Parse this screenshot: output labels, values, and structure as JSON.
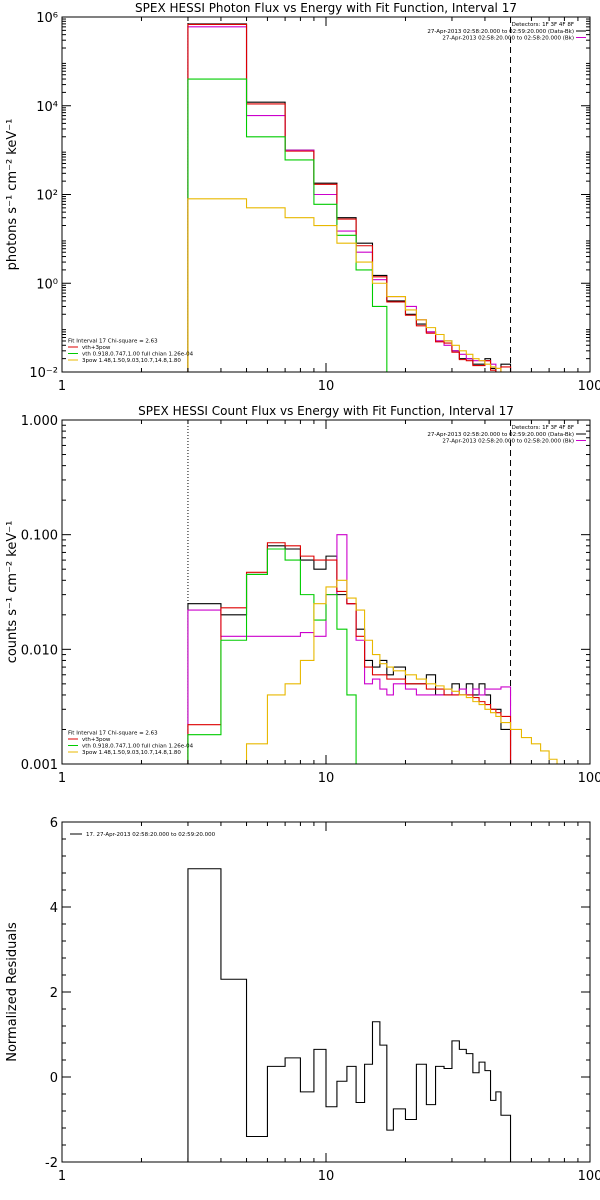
{
  "chart_data": [
    {
      "type": "line",
      "title": "SPEX HESSI Photon Flux vs Energy with Fit Function, Interval 17",
      "xlabel": "",
      "ylabel": "photons s⁻¹ cm⁻² keV⁻¹",
      "xscale": "log",
      "yscale": "log",
      "xlim": [
        1,
        100
      ],
      "ylim": [
        0.01,
        1000000
      ],
      "x_ticks": [
        "1",
        "10",
        "100"
      ],
      "y_ticks": [
        {
          "value": 0.01,
          "label": "10⁻²"
        },
        {
          "value": 1,
          "label": "10⁰"
        },
        {
          "value": 100,
          "label": "10²"
        },
        {
          "value": 10000,
          "label": "10⁴"
        },
        {
          "value": 1000000,
          "label": "10⁶"
        }
      ],
      "legend_top_right": {
        "header": "Detectors: 1F 3F 4F 8F",
        "entries": [
          {
            "text": "27-Apr-2013 02:58:20.000 to 02:59:20.000 (Data-Bk)",
            "color": "#000000"
          },
          {
            "text": "27-Apr-2013 02:58:20.000 to 02:58:20.000 (Bk)",
            "color": "#cc00cc"
          }
        ]
      },
      "legend_bottom_left": {
        "header": "Fit Interval 17   Chi-square = 2.63",
        "entries": [
          {
            "text": "vth+3pow",
            "color": "#dd0000"
          },
          {
            "text": "vth 0.918,0.747,1.00  full chian 1.26e-04",
            "color": "#00cc00"
          },
          {
            "text": "3pow 1.48,1.50,9.03,10.7,14.8,1.80",
            "color": "#e8b800"
          }
        ]
      },
      "vlines": [
        {
          "x": 3,
          "style": "dotted"
        },
        {
          "x": 50,
          "style": "dashed"
        }
      ],
      "edges": [
        3,
        4,
        5,
        6,
        7,
        8,
        9,
        10,
        11,
        12,
        13,
        14,
        15,
        16,
        17,
        18,
        20,
        22,
        24,
        26,
        28,
        30,
        32,
        34,
        36,
        38,
        40,
        42,
        44,
        46,
        50,
        55,
        60,
        65
      ],
      "series": [
        {
          "name": "27-Apr-2013 02:58:20.000 to 02:59:20.000 (Data-Bk)",
          "color": "#000000",
          "values": [
            700000,
            700000,
            12000,
            12000,
            1000,
            1000,
            180,
            180,
            30,
            30,
            8,
            8,
            1.5,
            1.5,
            0.4,
            0.4,
            0.2,
            0.12,
            0.08,
            0.05,
            0.05,
            0.03,
            0.02,
            0.02,
            0.015,
            0.015,
            0.02,
            0.012,
            0.01,
            0.015
          ]
        },
        {
          "name": "27-Apr-2013 02:58:20.000 to 02:58:20.000 (Bk)",
          "color": "#cc00cc",
          "values": [
            600000,
            600000,
            6000,
            6000,
            1000,
            1000,
            100,
            100,
            15,
            15,
            5,
            5,
            1.2,
            1.2,
            0.5,
            0.5,
            0.3,
            0.15,
            0.08,
            0.05,
            0.04,
            0.03,
            0.025,
            0.02,
            0.018,
            0.018,
            0.018,
            0.015,
            0.012,
            0.01
          ]
        },
        {
          "name": "vth+3pow",
          "color": "#dd0000",
          "values": [
            680000,
            680000,
            11000,
            11000,
            950,
            950,
            170,
            170,
            28,
            28,
            7,
            7,
            1.4,
            1.4,
            0.38,
            0.38,
            0.19,
            0.11,
            0.075,
            0.048,
            0.045,
            0.028,
            0.019,
            0.018,
            0.014,
            0.014,
            0.018,
            0.011,
            0.009,
            0.013
          ]
        },
        {
          "name": "vth 0.918,0.747,1.00  full chian 1.26e-04",
          "color": "#00cc00",
          "values": [
            40000,
            40000,
            2000,
            2000,
            600,
            600,
            60,
            60,
            12,
            12,
            2,
            2,
            0.3,
            0.3,
            0.01,
            0.01
          ]
        },
        {
          "name": "3pow 1.48,1.50,9.03,10.7,14.8,1.80",
          "color": "#e8b800",
          "values": [
            80,
            80,
            50,
            50,
            30,
            30,
            20,
            20,
            8,
            8,
            3,
            3,
            1,
            1,
            0.5,
            0.5,
            0.25,
            0.15,
            0.1,
            0.07,
            0.05,
            0.04,
            0.03,
            0.025,
            0.02,
            0.018,
            0.015,
            0.013,
            0.012,
            0.01,
            0.008,
            0.006,
            0.005
          ]
        }
      ]
    },
    {
      "type": "line",
      "title": "SPEX HESSI Count Flux vs Energy with Fit Function, Interval 17",
      "xlabel": "",
      "ylabel": "counts s⁻¹ cm⁻² keV⁻¹",
      "xscale": "log",
      "yscale": "log",
      "xlim": [
        1,
        100
      ],
      "ylim": [
        0.001,
        1.0
      ],
      "x_ticks": [
        "1",
        "10",
        "100"
      ],
      "y_ticks": [
        {
          "value": 0.001,
          "label": "0.001"
        },
        {
          "value": 0.01,
          "label": "0.010"
        },
        {
          "value": 0.1,
          "label": "0.100"
        },
        {
          "value": 1.0,
          "label": "1.000"
        }
      ],
      "legend_top_right": {
        "header": "Detectors: 1F 3F 4F 8F",
        "entries": [
          {
            "text": "27-Apr-2013 02:58:20.000 to 02:59:20.000 (Data-Bk)",
            "color": "#000000"
          },
          {
            "text": "27-Apr-2013 02:58:20.000 to 02:58:20.000 (Bk)",
            "color": "#cc00cc"
          }
        ]
      },
      "legend_bottom_left": {
        "header": "Fit Interval 17   Chi-square = 2.63",
        "entries": [
          {
            "text": "vth+3pow",
            "color": "#dd0000"
          },
          {
            "text": "vth 0.918,0.747,1.00  full chian 1.26e-04",
            "color": "#00cc00"
          },
          {
            "text": "3pow 1.48,1.50,9.03,10.7,14.8,1.80",
            "color": "#e8b800"
          }
        ]
      },
      "vlines": [
        {
          "x": 3,
          "style": "dotted"
        },
        {
          "x": 50,
          "style": "dashed"
        }
      ],
      "edges": [
        3,
        4,
        5,
        6,
        7,
        8,
        9,
        10,
        11,
        12,
        13,
        14,
        15,
        16,
        17,
        18,
        20,
        22,
        24,
        26,
        28,
        30,
        32,
        34,
        36,
        38,
        40,
        42,
        44,
        46,
        50,
        55,
        60,
        65,
        70,
        75,
        80,
        90
      ],
      "series": [
        {
          "name": "27-Apr-2013 02:58:20.000 to 02:59:20.000 (Data-Bk)",
          "color": "#000000",
          "values": [
            0.025,
            0.02,
            0.045,
            0.08,
            0.075,
            0.06,
            0.05,
            0.065,
            0.03,
            0.025,
            0.015,
            0.008,
            0.007,
            0.008,
            0.006,
            0.007,
            0.005,
            0.005,
            0.006,
            0.004,
            0.004,
            0.005,
            0.004,
            0.005,
            0.004,
            0.005,
            0.004,
            0.003,
            0.003,
            0.002
          ]
        },
        {
          "name": "27-Apr-2013 02:58:20.000 to 02:58:20.000 (Bk)",
          "color": "#cc00cc",
          "values": [
            0.022,
            0.013,
            0.013,
            0.013,
            0.013,
            0.014,
            0.013,
            0.03,
            0.1,
            0.025,
            0.012,
            0.005,
            0.0055,
            0.0045,
            0.004,
            0.005,
            0.0045,
            0.004,
            0.004,
            0.004,
            0.0045,
            0.004,
            0.0045,
            0.004,
            0.0045,
            0.004,
            0.0045,
            0.0045,
            0.0045,
            0.0047
          ]
        },
        {
          "name": "vth+3pow",
          "color": "#dd0000",
          "values": [
            0.0022,
            0.023,
            0.047,
            0.085,
            0.08,
            0.065,
            0.06,
            0.06,
            0.032,
            0.025,
            0.013,
            0.007,
            0.006,
            0.006,
            0.0055,
            0.0055,
            0.005,
            0.005,
            0.0045,
            0.0045,
            0.004,
            0.004,
            0.004,
            0.004,
            0.0038,
            0.0035,
            0.0033,
            0.003,
            0.0028,
            0.0026
          ]
        },
        {
          "name": "vth 0.918,0.747,1.00  full chian 1.26e-04",
          "color": "#00cc00",
          "values": [
            0.0018,
            0.012,
            0.045,
            0.075,
            0.06,
            0.03,
            0.018,
            0.03,
            0.015,
            0.004,
            0.001
          ]
        },
        {
          "name": "3pow 1.48,1.50,9.03,10.7,14.8,1.80",
          "color": "#e8b800",
          "values": [
            0.001,
            0.001,
            0.0015,
            0.004,
            0.005,
            0.008,
            0.025,
            0.035,
            0.04,
            0.028,
            0.022,
            0.012,
            0.009,
            0.0075,
            0.007,
            0.0065,
            0.006,
            0.0055,
            0.005,
            0.0048,
            0.0045,
            0.0043,
            0.004,
            0.0038,
            0.0035,
            0.0033,
            0.003,
            0.0028,
            0.0026,
            0.0023,
            0.002,
            0.0017,
            0.0015,
            0.0013,
            0.0011,
            0.001,
            0.001
          ]
        }
      ]
    },
    {
      "type": "line",
      "title": "",
      "xlabel": "",
      "ylabel": "Normalized Residuals",
      "xscale": "log",
      "yscale": "linear",
      "xlim": [
        1,
        100
      ],
      "ylim": [
        -2,
        6
      ],
      "x_ticks": [
        "1",
        "10",
        "100"
      ],
      "y_ticks": [
        {
          "value": -2,
          "label": "-2"
        },
        {
          "value": 0,
          "label": "0"
        },
        {
          "value": 2,
          "label": "2"
        },
        {
          "value": 4,
          "label": "4"
        },
        {
          "value": 6,
          "label": "6"
        }
      ],
      "legend_top_left": {
        "entries": [
          {
            "text": "17. 27-Apr-2013 02:58:20.000 to 02:59:20.000",
            "color": "#000000"
          }
        ]
      },
      "edges": [
        3,
        4,
        5,
        6,
        7,
        8,
        9,
        10,
        11,
        12,
        13,
        14,
        15,
        16,
        17,
        18,
        20,
        22,
        24,
        26,
        28,
        30,
        32,
        34,
        36,
        38,
        40,
        42,
        44,
        46,
        50
      ],
      "series": [
        {
          "name": "17. 27-Apr-2013 02:58:20.000 to 02:59:20.000",
          "color": "#000000",
          "values": [
            4.9,
            2.3,
            -1.4,
            0.25,
            0.45,
            -0.35,
            0.65,
            -0.7,
            -0.1,
            0.25,
            -0.6,
            0.3,
            1.3,
            0.75,
            -1.25,
            -0.75,
            -1.0,
            0.3,
            -0.65,
            0.25,
            0.2,
            0.85,
            0.65,
            0.55,
            0.1,
            0.35,
            0.15,
            -0.55,
            -0.35,
            -0.9
          ]
        }
      ]
    }
  ]
}
